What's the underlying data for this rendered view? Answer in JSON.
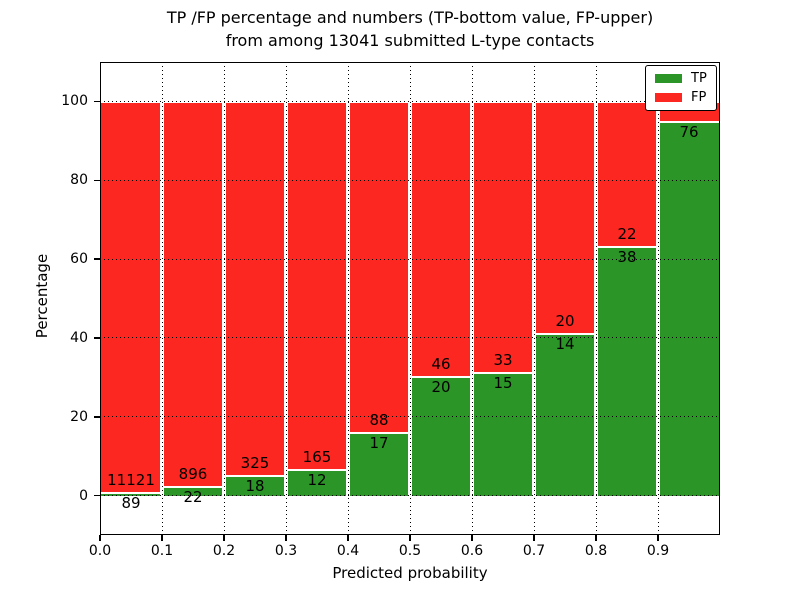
{
  "title": {
    "line1": "TP /FP percentage and numbers (TP-bottom value, FP-upper)",
    "line2": "from among 13041 submitted L-type contacts"
  },
  "chart_data": {
    "type": "bar",
    "stacked": true,
    "title": "TP /FP percentage and numbers (TP-bottom value, FP-upper) from among 13041 submitted L-type contacts",
    "xlabel": "Predicted probability",
    "ylabel": "Percentage",
    "xlim": [
      0.0,
      1.0
    ],
    "ylim": [
      -10,
      110
    ],
    "xticks": [
      "0.0",
      "0.1",
      "0.2",
      "0.3",
      "0.4",
      "0.5",
      "0.6",
      "0.7",
      "0.8",
      "0.9"
    ],
    "yticks": [
      "0",
      "20",
      "40",
      "60",
      "80",
      "100"
    ],
    "grid": "dotted",
    "bin_width": 0.1,
    "total_contacts": 13041,
    "legend_position": "upper right",
    "legend": [
      {
        "label": "TP",
        "color": "#2b9527"
      },
      {
        "label": "FP",
        "color": "#fc2720"
      }
    ],
    "bars": [
      {
        "bin_start": 0.0,
        "tp": 89,
        "fp": 11121
      },
      {
        "bin_start": 0.1,
        "tp": 22,
        "fp": 896
      },
      {
        "bin_start": 0.2,
        "tp": 18,
        "fp": 325
      },
      {
        "bin_start": 0.3,
        "tp": 12,
        "fp": 165
      },
      {
        "bin_start": 0.4,
        "tp": 17,
        "fp": 88
      },
      {
        "bin_start": 0.5,
        "tp": 20,
        "fp": 46
      },
      {
        "bin_start": 0.6,
        "tp": 15,
        "fp": 33
      },
      {
        "bin_start": 0.7,
        "tp": 14,
        "fp": 20
      },
      {
        "bin_start": 0.8,
        "tp": 38,
        "fp": 22
      },
      {
        "bin_start": 0.9,
        "tp": 76,
        "fp": 4,
        "fp_label_visible": false
      }
    ]
  },
  "colors": {
    "tp_green": "#2b9527",
    "fp_red": "#fc2720",
    "bar_edge": "#ffffff",
    "grid": "#000000",
    "frame": "#000000",
    "text": "#000000"
  }
}
